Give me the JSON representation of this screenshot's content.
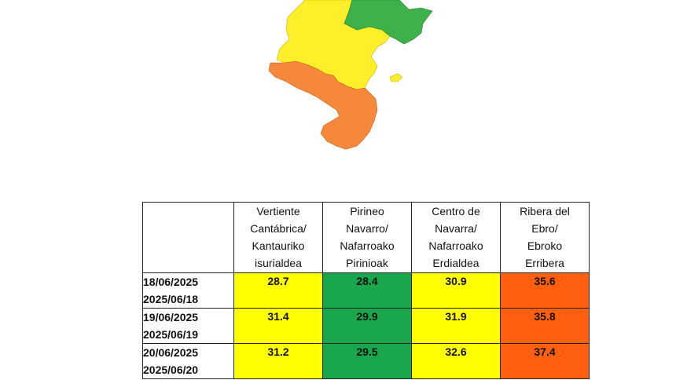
{
  "colors": {
    "yellow": "#ffff00",
    "green": "#1aa64b",
    "orange": "#ff5f0f",
    "map_yellow": "#ffee2a",
    "map_green": "#3fb14a",
    "map_orange": "#f5883a"
  },
  "map": {
    "regions": [
      {
        "name": "north-east",
        "color": "green"
      },
      {
        "name": "north-west",
        "color": "yellow"
      },
      {
        "name": "centre",
        "color": "yellow"
      },
      {
        "name": "south",
        "color": "orange"
      }
    ]
  },
  "table": {
    "columns": [
      {
        "lines": [
          "Vertiente",
          "Cantábrica/",
          "Kantauriko",
          "isurialdea"
        ]
      },
      {
        "lines": [
          "Pirineo",
          "Navarro/",
          "Nafarroako",
          "Pirinioak"
        ]
      },
      {
        "lines": [
          "Centro de",
          "Navarra/",
          "Nafarroako",
          "Erdialdea"
        ]
      },
      {
        "lines": [
          "Ribera del",
          "Ebro/",
          "Ebroko",
          "Erribera"
        ]
      }
    ],
    "rows": [
      {
        "date_es": "18/06/2025",
        "date_eu": "2025/06/18",
        "values": [
          "28.7",
          "28.4",
          "30.9",
          "35.6"
        ],
        "levels": [
          "yellow",
          "green",
          "yellow",
          "orange"
        ]
      },
      {
        "date_es": "19/06/2025",
        "date_eu": "2025/06/19",
        "values": [
          "31.4",
          "29.9",
          "31.9",
          "35.8"
        ],
        "levels": [
          "yellow",
          "green",
          "yellow",
          "orange"
        ]
      },
      {
        "date_es": "20/06/2025",
        "date_eu": "2025/06/20",
        "values": [
          "31.2",
          "29.5",
          "32.6",
          "37.4"
        ],
        "levels": [
          "yellow",
          "green",
          "yellow",
          "orange"
        ]
      }
    ]
  }
}
